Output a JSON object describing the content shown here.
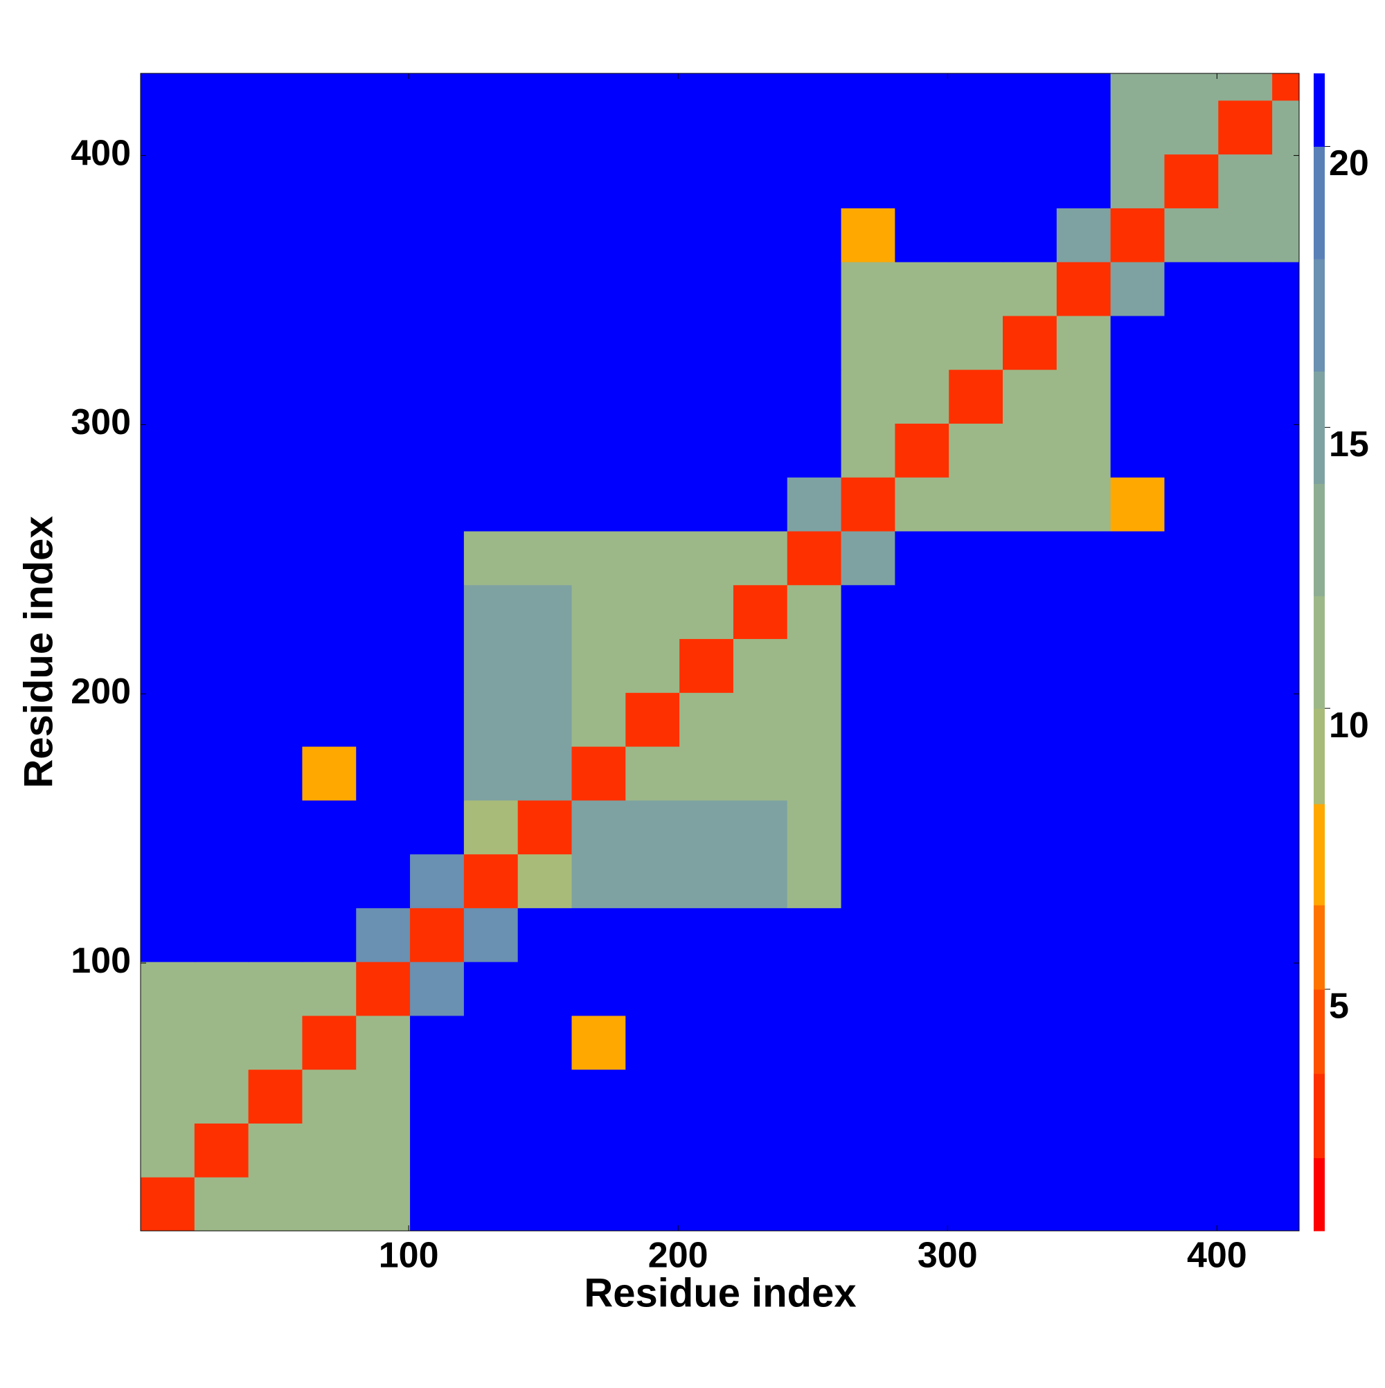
{
  "chart_data": {
    "type": "heatmap",
    "xlabel": "Residue index",
    "ylabel": "Residue index",
    "xlim": [
      0.5,
      430.5
    ],
    "ylim": [
      0.5,
      430.5
    ],
    "xticks": [
      100,
      200,
      300,
      400
    ],
    "yticks": [
      100,
      200,
      300,
      400
    ],
    "xbins": [
      0.5,
      20.5,
      40.5,
      60.5,
      80.5,
      100.5,
      120.5,
      140.5,
      160.5,
      180.5,
      200.5,
      220.5,
      240.5,
      260.5,
      280.5,
      300.5,
      320.5,
      340.5,
      360.5,
      380.5,
      400.5,
      420.5,
      430.5
    ],
    "ybins": [
      0.5,
      20.5,
      40.5,
      60.5,
      80.5,
      100.5,
      120.5,
      140.5,
      160.5,
      180.5,
      200.5,
      220.5,
      240.5,
      260.5,
      280.5,
      300.5,
      320.5,
      340.5,
      360.5,
      380.5,
      400.5,
      420.5,
      430.5
    ],
    "z": [
      [
        3,
        11,
        11,
        11,
        11,
        21,
        21,
        21,
        21,
        21,
        21,
        21,
        21,
        21,
        21,
        21,
        21,
        21,
        21,
        21,
        21,
        21
      ],
      [
        11,
        3,
        11,
        11,
        11,
        21,
        21,
        21,
        21,
        21,
        21,
        21,
        21,
        21,
        21,
        21,
        21,
        21,
        21,
        21,
        21,
        21
      ],
      [
        11,
        11,
        3,
        11,
        11,
        21,
        21,
        21,
        21,
        21,
        21,
        21,
        21,
        21,
        21,
        21,
        21,
        21,
        21,
        21,
        21,
        21
      ],
      [
        11,
        11,
        11,
        3,
        11,
        21,
        21,
        21,
        7,
        21,
        21,
        21,
        21,
        21,
        21,
        21,
        21,
        21,
        21,
        21,
        21,
        21
      ],
      [
        11,
        11,
        11,
        11,
        3,
        16,
        21,
        21,
        21,
        21,
        21,
        21,
        21,
        21,
        21,
        21,
        21,
        21,
        21,
        21,
        21,
        21
      ],
      [
        21,
        21,
        21,
        21,
        16,
        3,
        16,
        21,
        21,
        21,
        21,
        21,
        21,
        21,
        21,
        21,
        21,
        21,
        21,
        21,
        21,
        21
      ],
      [
        21,
        21,
        21,
        21,
        21,
        16,
        3,
        9,
        15,
        15,
        15,
        15,
        10,
        21,
        21,
        21,
        21,
        21,
        21,
        21,
        21,
        21
      ],
      [
        21,
        21,
        21,
        21,
        21,
        21,
        9,
        3,
        15,
        15,
        15,
        15,
        10,
        21,
        21,
        21,
        21,
        21,
        21,
        21,
        21,
        21
      ],
      [
        21,
        21,
        21,
        7,
        21,
        21,
        15,
        15,
        3,
        11,
        11,
        11,
        11,
        21,
        21,
        21,
        21,
        21,
        21,
        21,
        21,
        21
      ],
      [
        21,
        21,
        21,
        21,
        21,
        21,
        15,
        15,
        11,
        3,
        11,
        11,
        11,
        21,
        21,
        21,
        21,
        21,
        21,
        21,
        21,
        21
      ],
      [
        21,
        21,
        21,
        21,
        21,
        21,
        15,
        15,
        11,
        11,
        3,
        11,
        11,
        21,
        21,
        21,
        21,
        21,
        21,
        21,
        21,
        21
      ],
      [
        21,
        21,
        21,
        21,
        21,
        21,
        15,
        15,
        11,
        11,
        11,
        3,
        11,
        21,
        21,
        21,
        21,
        21,
        21,
        21,
        21,
        21
      ],
      [
        21,
        21,
        21,
        21,
        21,
        21,
        10,
        10,
        11,
        11,
        11,
        11,
        3,
        15,
        21,
        21,
        21,
        21,
        21,
        21,
        21,
        21
      ],
      [
        21,
        21,
        21,
        21,
        21,
        21,
        21,
        21,
        21,
        21,
        21,
        21,
        15,
        3,
        11,
        11,
        11,
        11,
        7,
        21,
        21,
        21
      ],
      [
        21,
        21,
        21,
        21,
        21,
        21,
        21,
        21,
        21,
        21,
        21,
        21,
        21,
        11,
        3,
        11,
        11,
        11,
        21,
        21,
        21,
        21
      ],
      [
        21,
        21,
        21,
        21,
        21,
        21,
        21,
        21,
        21,
        21,
        21,
        21,
        21,
        11,
        11,
        3,
        11,
        11,
        21,
        21,
        21,
        21
      ],
      [
        21,
        21,
        21,
        21,
        21,
        21,
        21,
        21,
        21,
        21,
        21,
        21,
        21,
        11,
        11,
        11,
        3,
        11,
        21,
        21,
        21,
        21
      ],
      [
        21,
        21,
        21,
        21,
        21,
        21,
        21,
        21,
        21,
        21,
        21,
        21,
        21,
        11,
        11,
        11,
        11,
        3,
        15,
        21,
        21,
        21
      ],
      [
        21,
        21,
        21,
        21,
        21,
        21,
        21,
        21,
        21,
        21,
        21,
        21,
        21,
        7,
        21,
        21,
        21,
        15,
        3,
        13,
        13,
        13
      ],
      [
        21,
        21,
        21,
        21,
        21,
        21,
        21,
        21,
        21,
        21,
        21,
        21,
        21,
        21,
        21,
        21,
        21,
        21,
        13,
        3,
        13,
        13
      ],
      [
        21,
        21,
        21,
        21,
        21,
        21,
        21,
        21,
        21,
        21,
        21,
        21,
        21,
        21,
        21,
        21,
        21,
        21,
        13,
        13,
        3,
        13
      ],
      [
        21,
        21,
        21,
        21,
        21,
        21,
        21,
        21,
        21,
        21,
        21,
        21,
        21,
        21,
        21,
        21,
        21,
        21,
        13,
        13,
        13,
        3
      ]
    ],
    "zlim": [
      0.7,
      21.3
    ],
    "zticks": [
      5,
      10,
      15,
      20
    ],
    "colorbar_levels": [
      2,
      3.5,
      5,
      6.5,
      8.3,
      10,
      12,
      14,
      16,
      18,
      20
    ],
    "colorbar_colors": [
      "#ff0000",
      "#ff3000",
      "#ff5000",
      "#ff7400",
      "#ffa800",
      "#a9bb78",
      "#9db888",
      "#8eae94",
      "#7ea2a2",
      "#6a90b2",
      "#5a80b8",
      "#0000ff"
    ]
  }
}
